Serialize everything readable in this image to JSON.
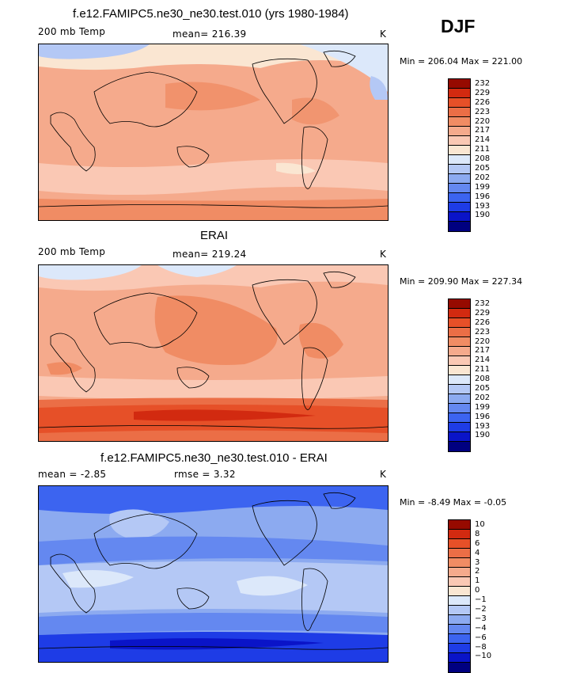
{
  "season": "DJF",
  "colors": {
    "palette": [
      "#000080",
      "#0a14c8",
      "#1e3ce6",
      "#3c64f0",
      "#6488f0",
      "#8caaf0",
      "#b4c8f5",
      "#dce8fa",
      "#fae6d2",
      "#fac8b4",
      "#f5aa8c",
      "#f08c64",
      "#eb6e46",
      "#e65028",
      "#d22a10",
      "#960a00"
    ],
    "coast": "#000000"
  },
  "panels": [
    {
      "title": "f.e12.FAMIPC5.ne30_ne30.test.010 (yrs 1980-1984)",
      "left_label": "200 mb Temp",
      "mid_label": "mean=  216.39",
      "unit": "K",
      "minmax": "Min = 206.04  Max = 221.00",
      "legend_labels": [
        "232",
        "229",
        "226",
        "223",
        "220",
        "217",
        "214",
        "211",
        "208",
        "205",
        "202",
        "199",
        "196",
        "193",
        "190"
      ]
    },
    {
      "title": "ERAI",
      "left_label": "200 mb Temp",
      "mid_label": "mean=  219.24",
      "unit": "K",
      "minmax": "Min = 209.90  Max = 227.34",
      "legend_labels": [
        "232",
        "229",
        "226",
        "223",
        "220",
        "217",
        "214",
        "211",
        "208",
        "205",
        "202",
        "199",
        "196",
        "193",
        "190"
      ]
    },
    {
      "title": "f.e12.FAMIPC5.ne30_ne30.test.010 - ERAI",
      "left_label": "mean =   -2.85",
      "mid_label": "rmse =     3.32",
      "unit": "K",
      "minmax": "Min =  -8.49  Max =  -0.05",
      "legend_labels": [
        "10",
        "8",
        "6",
        "4",
        "3",
        "2",
        "1",
        "0",
        "−1",
        "−2",
        "−3",
        "−4",
        "−6",
        "−8",
        "−10"
      ]
    }
  ]
}
